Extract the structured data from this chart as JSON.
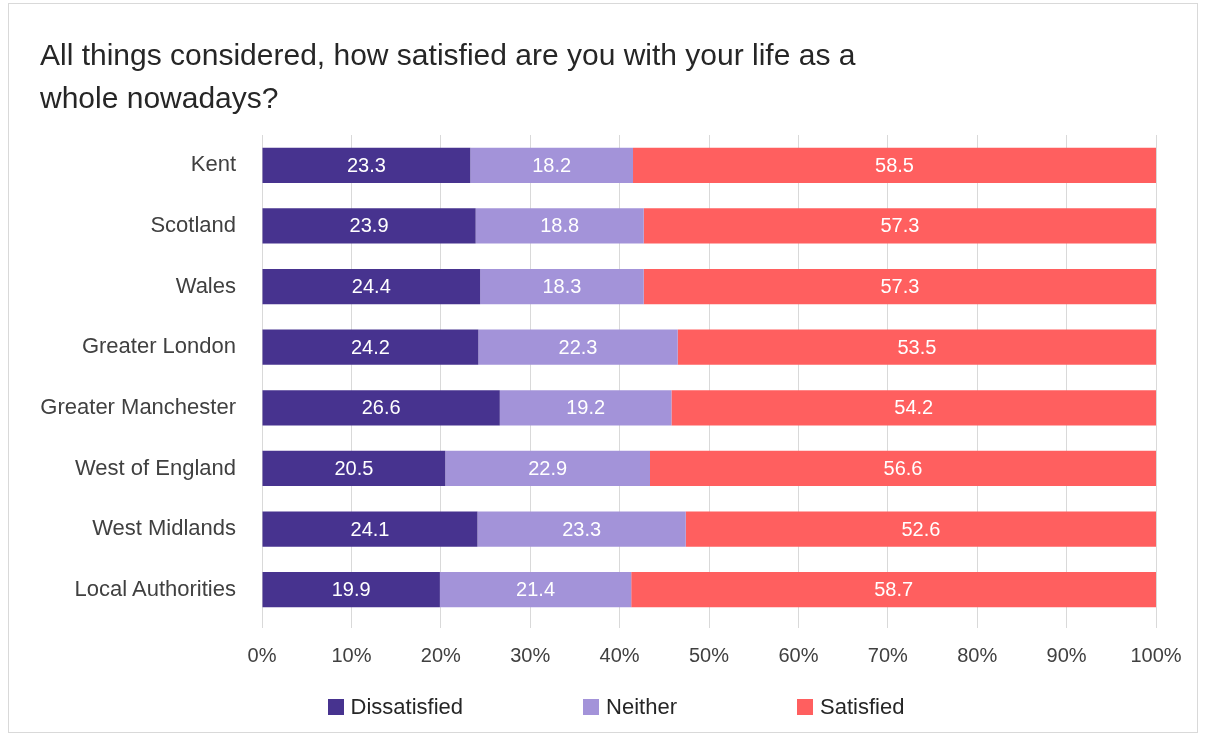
{
  "chart_data": {
    "type": "bar",
    "orientation": "horizontal",
    "stacked": true,
    "title": "All things considered, how satisfied are you with your life as a whole nowadays?",
    "categories": [
      "Kent",
      "Scotland",
      "Wales",
      "Greater London",
      "Greater Manchester",
      "West of England",
      "West Midlands",
      "Local Authorities"
    ],
    "series": [
      {
        "name": "Dissatisfied",
        "color": "#47338f",
        "values": [
          23.3,
          23.9,
          24.4,
          24.2,
          26.6,
          20.5,
          24.1,
          19.9
        ]
      },
      {
        "name": "Neither",
        "color": "#a393d9",
        "values": [
          18.2,
          18.8,
          18.3,
          22.3,
          19.2,
          22.9,
          23.3,
          21.4
        ]
      },
      {
        "name": "Satisfied",
        "color": "#ff5f5f",
        "values": [
          58.5,
          57.3,
          57.3,
          53.5,
          54.2,
          56.6,
          52.6,
          58.7
        ]
      }
    ],
    "xlim": [
      0,
      100
    ],
    "xticks": [
      {
        "value": 0,
        "label": "0%"
      },
      {
        "value": 10,
        "label": "10%"
      },
      {
        "value": 20,
        "label": "20%"
      },
      {
        "value": 30,
        "label": "30%"
      },
      {
        "value": 40,
        "label": "40%"
      },
      {
        "value": 50,
        "label": "50%"
      },
      {
        "value": 60,
        "label": "60%"
      },
      {
        "value": 70,
        "label": "70%"
      },
      {
        "value": 80,
        "label": "80%"
      },
      {
        "value": 90,
        "label": "90%"
      },
      {
        "value": 100,
        "label": "100%"
      }
    ],
    "grid": "x",
    "legend": "bottom",
    "data_labels": true
  }
}
